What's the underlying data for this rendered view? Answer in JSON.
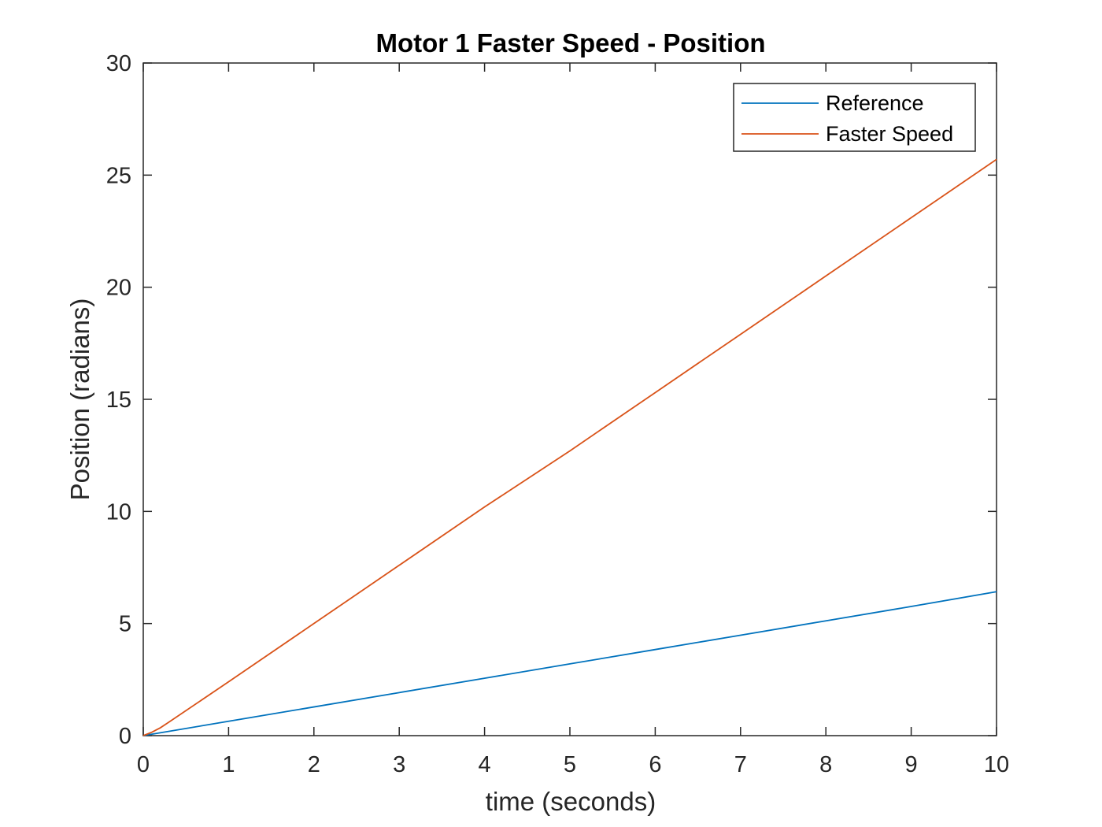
{
  "chart_data": {
    "type": "line",
    "title": "Motor 1 Faster Speed - Position",
    "xlabel": "time (seconds)",
    "ylabel": "Position (radians)",
    "xlim": [
      0,
      10
    ],
    "ylim": [
      0,
      30
    ],
    "xticks": [
      0,
      1,
      2,
      3,
      4,
      5,
      6,
      7,
      8,
      9,
      10
    ],
    "yticks": [
      0,
      5,
      10,
      15,
      20,
      25,
      30
    ],
    "grid": false,
    "legend_position": "top-right",
    "series": [
      {
        "name": "Reference",
        "color": "#0072BD",
        "x": [
          0,
          1,
          2,
          3,
          4,
          5,
          6,
          7,
          8,
          9,
          10
        ],
        "y": [
          0,
          0.64,
          1.28,
          1.92,
          2.56,
          3.2,
          3.84,
          4.48,
          5.12,
          5.76,
          6.42
        ]
      },
      {
        "name": "Faster Speed",
        "color": "#D95319",
        "x": [
          0,
          0.1,
          0.2,
          0.3,
          1,
          2,
          3,
          4,
          5,
          6,
          7,
          8,
          9,
          10
        ],
        "y": [
          0,
          0.15,
          0.35,
          0.6,
          2.4,
          5.0,
          7.6,
          10.2,
          12.7,
          15.3,
          17.9,
          20.5,
          23.1,
          25.7
        ]
      }
    ]
  }
}
